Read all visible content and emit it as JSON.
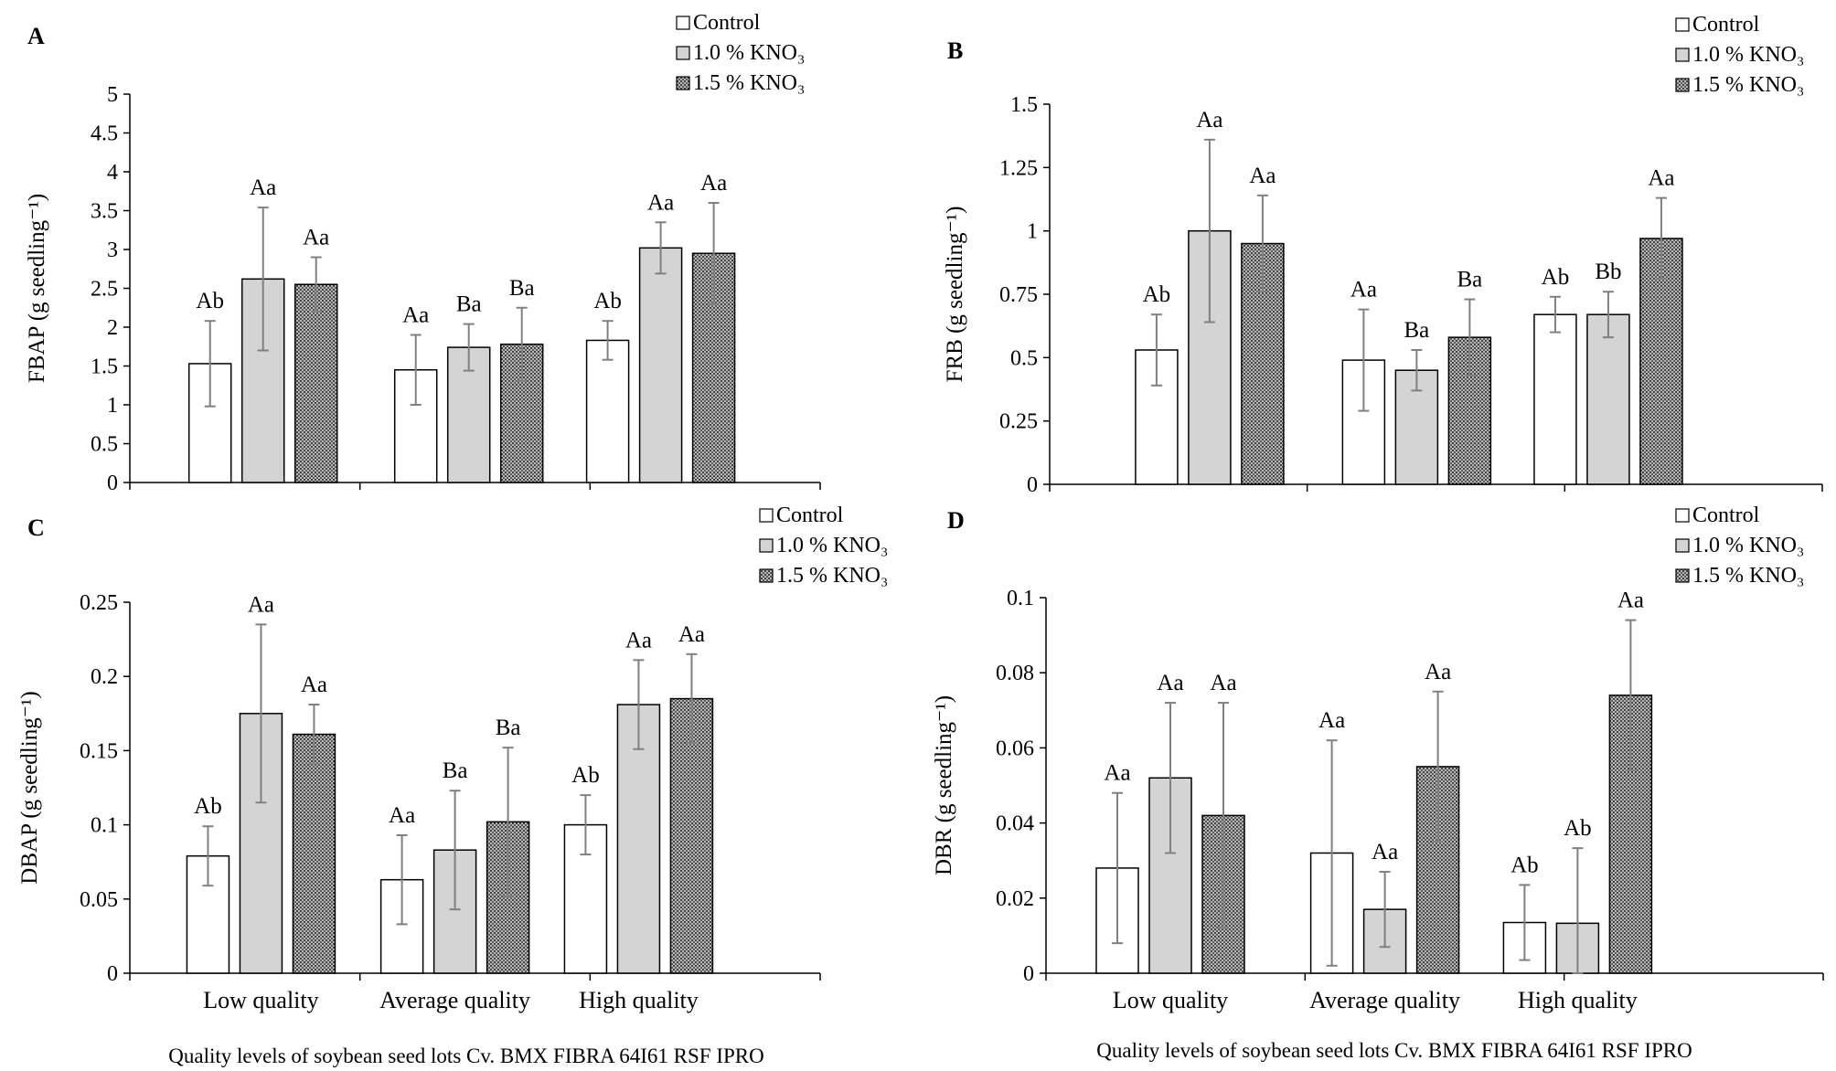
{
  "colors": {
    "control_fill": "#ffffff",
    "kno3_10_fill": "#d4d4d4",
    "kno3_15_fill": "#8f8f8f",
    "axis": "#000000",
    "error_bar": "#808080"
  },
  "legend": {
    "entries": [
      {
        "label": "Control",
        "pattern": "control"
      },
      {
        "label": "1.0 % KNO₃",
        "pattern": "kno3_10"
      },
      {
        "label": "1.5 % KNO₃",
        "pattern": "kno3_15"
      }
    ]
  },
  "x_axis_title": "Quality levels of soybean  seed lots Cv. BMX FIBRA 64I61 RSF IPRO",
  "chart_data": [
    {
      "panel": "A",
      "type": "bar",
      "ylabel": "FBAP (g seedling⁻¹)",
      "ylim": [
        0,
        5
      ],
      "yticks": [
        "0",
        "0.5",
        "1",
        "1.5",
        "2",
        "2.5",
        "3",
        "3.5",
        "4",
        "4.5",
        "5"
      ],
      "categories": [
        "Low quality",
        "Average quality",
        "High quality"
      ],
      "show_category_labels": false,
      "series": [
        {
          "name": "Control",
          "values": [
            1.53,
            1.45,
            1.83
          ],
          "errors": [
            0.55,
            0.45,
            0.25
          ],
          "labels": [
            "Ab",
            "Aa",
            "Ab"
          ]
        },
        {
          "name": "1.0 % KNO₃",
          "values": [
            2.62,
            1.74,
            3.02
          ],
          "errors": [
            0.92,
            0.3,
            0.33
          ],
          "labels": [
            "Aa",
            "Ba",
            "Aa"
          ]
        },
        {
          "name": "1.5 % KNO₃",
          "values": [
            2.55,
            1.78,
            2.95
          ],
          "errors": [
            0.35,
            0.47,
            0.65
          ],
          "labels": [
            "Aa",
            "Ba",
            "Aa"
          ]
        }
      ]
    },
    {
      "panel": "B",
      "type": "bar",
      "ylabel": "FRB (g seedling⁻¹)",
      "ylim": [
        0,
        1.5
      ],
      "yticks": [
        "0",
        "0.25",
        "0.5",
        "0.75",
        "1",
        "1.25",
        "1.5"
      ],
      "categories": [
        "Low quality",
        "Average quality",
        "High quality"
      ],
      "show_category_labels": false,
      "series": [
        {
          "name": "Control",
          "values": [
            0.53,
            0.49,
            0.67
          ],
          "errors": [
            0.14,
            0.2,
            0.07
          ],
          "labels": [
            "Ab",
            "Aa",
            "Ab"
          ]
        },
        {
          "name": "1.0 % KNO₃",
          "values": [
            1.0,
            0.45,
            0.67
          ],
          "errors": [
            0.36,
            0.08,
            0.09
          ],
          "labels": [
            "Aa",
            "Ba",
            "Bb"
          ]
        },
        {
          "name": "1.5 % KNO₃",
          "values": [
            0.95,
            0.58,
            0.97
          ],
          "errors": [
            0.19,
            0.15,
            0.16
          ],
          "labels": [
            "Aa",
            "Ba",
            "Aa"
          ]
        }
      ]
    },
    {
      "panel": "C",
      "type": "bar",
      "ylabel": "DBAP (g seedling⁻¹)",
      "ylim": [
        0,
        0.25
      ],
      "yticks": [
        "0",
        "0.05",
        "0.1",
        "0.15",
        "0.2",
        "0.25"
      ],
      "categories": [
        "Low quality",
        "Average quality",
        "High quality"
      ],
      "show_category_labels": true,
      "series": [
        {
          "name": "Control",
          "values": [
            0.079,
            0.063,
            0.1
          ],
          "errors": [
            0.02,
            0.03,
            0.02
          ],
          "labels": [
            "Ab",
            "Aa",
            "Ab"
          ]
        },
        {
          "name": "1.0 % KNO₃",
          "values": [
            0.175,
            0.083,
            0.181
          ],
          "errors": [
            0.06,
            0.04,
            0.03
          ],
          "labels": [
            "Aa",
            "Ba",
            "Aa"
          ]
        },
        {
          "name": "1.5 % KNO₃",
          "values": [
            0.161,
            0.102,
            0.185
          ],
          "errors": [
            0.02,
            0.05,
            0.03
          ],
          "labels": [
            "Aa",
            "Ba",
            "Aa"
          ]
        }
      ]
    },
    {
      "panel": "D",
      "type": "bar",
      "ylabel": "DBR (g seedling⁻¹)",
      "ylim": [
        0,
        0.1
      ],
      "yticks": [
        "0",
        "0.02",
        "0.04",
        "0.06",
        "0.08",
        "0.1"
      ],
      "categories": [
        "Low quality",
        "Average quality",
        "High quality"
      ],
      "show_category_labels": true,
      "series": [
        {
          "name": "Control",
          "values": [
            0.028,
            0.032,
            0.0135
          ],
          "errors": [
            0.02,
            0.03,
            0.01
          ],
          "labels": [
            "Aa",
            "Aa",
            "Ab"
          ]
        },
        {
          "name": "1.0 % KNO₃",
          "values": [
            0.052,
            0.017,
            0.0133
          ],
          "errors": [
            0.02,
            0.01,
            0.02
          ],
          "labels": [
            "Aa",
            "Aa",
            "Ab"
          ]
        },
        {
          "name": "1.5 % KNO₃",
          "values": [
            0.042,
            0.055,
            0.074
          ],
          "errors": [
            0.03,
            0.02,
            0.02
          ],
          "labels": [
            "Aa",
            "Aa",
            "Aa"
          ]
        }
      ]
    }
  ]
}
